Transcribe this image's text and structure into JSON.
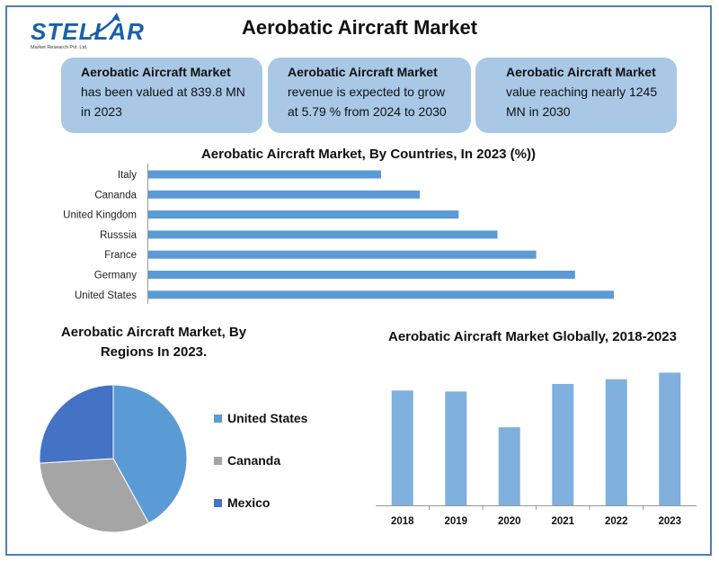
{
  "logo": {
    "text": "STELLAR",
    "subtext": "Market Research Pvt. Ltd."
  },
  "title": "Aerobatic Aircraft Market",
  "cards": [
    {
      "title": "Aerobatic Aircraft Market",
      "body": "has been valued at 839.8 MN in 2023"
    },
    {
      "title": "Aerobatic Aircraft Market",
      "body": "revenue is expected to grow at 5.79 % from 2024 to 2030"
    },
    {
      "title": "Aerobatic Aircraft Market",
      "body": "value reaching nearly 1245 MN in 2030"
    }
  ],
  "colors": {
    "bar": "#5b9bd5",
    "card": "#a8c8e6",
    "col": "#7fb0de",
    "frame": "#4a7fb8"
  },
  "chart_data": [
    {
      "type": "bar",
      "orientation": "horizontal",
      "title": "Aerobatic Aircraft Market, By Countries, In 2023 (%))",
      "categories": [
        "Italy",
        "Cananda",
        "United Kingdom",
        "Russsia",
        "France",
        "Germany",
        "United States"
      ],
      "values": [
        6,
        7,
        8,
        9,
        10,
        11,
        12
      ],
      "xlim": [
        0,
        14
      ],
      "grid": false
    },
    {
      "type": "pie",
      "title": "Aerobatic Aircraft Market, By Regions In 2023.",
      "labels": [
        "United States",
        "Cananda",
        "Mexico"
      ],
      "values": [
        42,
        32,
        26
      ],
      "colors": [
        "#5b9bd5",
        "#a5a5a5",
        "#4472c4"
      ],
      "legend": "right"
    },
    {
      "type": "bar",
      "title": "Aerobatic Aircraft Market Globally, 2018-2023",
      "categories": [
        "2018",
        "2019",
        "2020",
        "2021",
        "2022",
        "2023"
      ],
      "values": [
        122,
        121,
        83,
        129,
        134,
        141
      ],
      "ylim": [
        0,
        150
      ],
      "grid": false
    }
  ]
}
